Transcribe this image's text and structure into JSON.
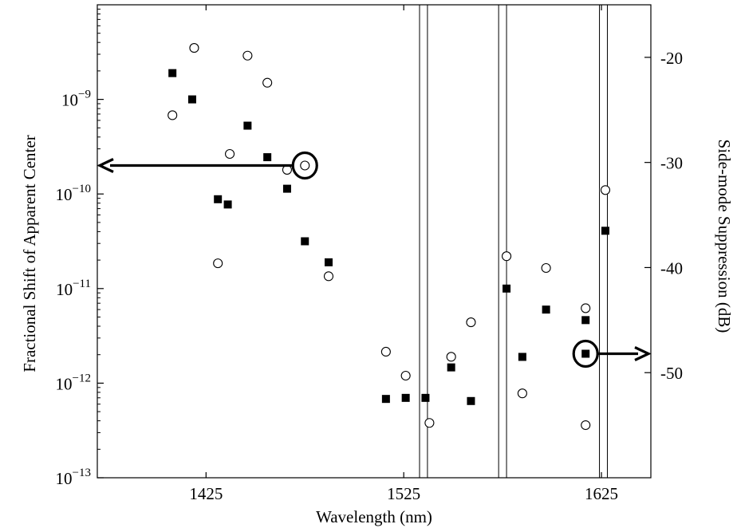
{
  "chart_data": {
    "type": "scatter",
    "title": "",
    "xlabel": "Wavelength (nm)",
    "ylabel_left": "Fractional Shift of Apparent Center",
    "ylabel_right": "Side-mode Suppression (dB)",
    "xlim": [
      1370,
      1650
    ],
    "ylim_left": [
      1e-13,
      1e-08
    ],
    "left_scale": "log",
    "ylim_right": [
      -60,
      -15
    ],
    "x_ticks": [
      1425,
      1525,
      1625
    ],
    "x_tick_labels": [
      "1425",
      "1525",
      "1625"
    ],
    "y_left_ticks": [
      {
        "value": 1e-09,
        "base": "10",
        "exp": "−9"
      },
      {
        "value": 1e-10,
        "base": "10",
        "exp": "−10"
      },
      {
        "value": 1e-11,
        "base": "10",
        "exp": "−11"
      },
      {
        "value": 1e-12,
        "base": "10",
        "exp": "−12"
      },
      {
        "value": 1e-13,
        "base": "10",
        "exp": "−13"
      }
    ],
    "y_right_ticks": [
      -20,
      -30,
      -40,
      -50
    ],
    "y_right_tick_labels": [
      "-20",
      "-30",
      "-40",
      "-50"
    ],
    "grid": false,
    "vertical_lines": [
      1533,
      1537,
      1573,
      1577,
      1624,
      1628
    ],
    "series": [
      {
        "marker": "open-circle",
        "axis": "left",
        "x": [
          1408,
          1419,
          1431,
          1437,
          1446,
          1456,
          1466,
          1475,
          1487,
          1516,
          1526,
          1538,
          1549,
          1559,
          1577,
          1585,
          1597,
          1617,
          1617,
          1627
        ],
        "y": [
          6.8e-10,
          3.5e-09,
          1.85e-11,
          2.65e-10,
          2.9e-09,
          1.5e-09,
          1.8e-10,
          2e-10,
          1.35e-11,
          2.15e-12,
          1.2e-12,
          3.8e-13,
          1.9e-12,
          4.4e-12,
          2.2e-11,
          7.8e-13,
          1.65e-11,
          6.2e-12,
          3.6e-13,
          1.1e-10
        ]
      },
      {
        "marker": "filled-square",
        "axis": "right",
        "x": [
          1408,
          1418,
          1431,
          1436,
          1446,
          1456,
          1466,
          1475,
          1487,
          1516,
          1526,
          1536,
          1549,
          1559,
          1577,
          1585,
          1597,
          1617,
          1617,
          1627
        ],
        "y": [
          -21.5,
          -24.0,
          -33.5,
          -34.0,
          -26.5,
          -29.5,
          -32.5,
          -37.5,
          -39.5,
          -52.5,
          -52.4,
          -52.4,
          -49.5,
          -52.7,
          -42.0,
          -48.5,
          -44.0,
          -45.0,
          -48.2,
          -36.5
        ]
      }
    ],
    "annotations": [
      {
        "type": "circle-arrow",
        "target_series": 0,
        "x": 1475,
        "y": 2e-10,
        "direction": "left"
      },
      {
        "type": "circle-arrow",
        "target_series": 1,
        "x": 1617,
        "y": -48.2,
        "direction": "right"
      }
    ]
  }
}
